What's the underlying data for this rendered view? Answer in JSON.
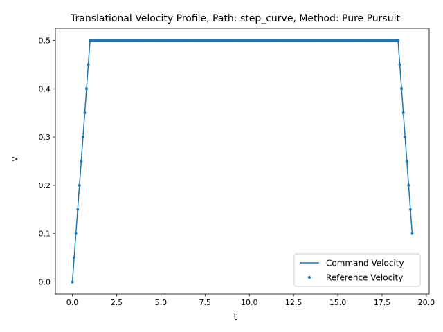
{
  "chart_data": {
    "type": "line",
    "title": "Translational Velocity Profile, Path: step_curve, Method: Pure Pursuit",
    "xlabel": "t",
    "ylabel": "v",
    "xlim": [
      -0.96,
      20.16
    ],
    "ylim": [
      -0.025,
      0.525
    ],
    "xticks": [
      "0.0",
      "2.5",
      "5.0",
      "7.5",
      "10.0",
      "12.5",
      "15.0",
      "17.5",
      "20.0"
    ],
    "yticks": [
      "0.0",
      "0.1",
      "0.2",
      "0.3",
      "0.4",
      "0.5"
    ],
    "grid": false,
    "legend_position": "lower right",
    "color": "#1f77b4",
    "series": [
      {
        "name": "Command Velocity",
        "kind": "line",
        "x": [
          0.0,
          1.0,
          18.4,
          19.2
        ],
        "y": [
          0.0,
          0.5,
          0.5,
          0.1
        ]
      },
      {
        "name": "Reference Velocity",
        "kind": "scatter",
        "x": [
          0.0,
          0.1,
          0.2,
          0.3,
          0.4,
          0.5,
          0.6,
          0.7,
          0.8,
          0.9,
          1.0,
          18.4,
          18.5,
          18.6,
          18.7,
          18.8,
          18.9,
          19.0,
          19.1,
          19.2
        ],
        "y": [
          0.0,
          0.05,
          0.1,
          0.15,
          0.2,
          0.25,
          0.3,
          0.35,
          0.4,
          0.45,
          0.5,
          0.5,
          0.45,
          0.4,
          0.35,
          0.3,
          0.25,
          0.2,
          0.15,
          0.1
        ],
        "plateau": {
          "x_start": 1.0,
          "x_end": 18.4,
          "x_step": 0.1,
          "y": 0.5
        }
      }
    ]
  }
}
